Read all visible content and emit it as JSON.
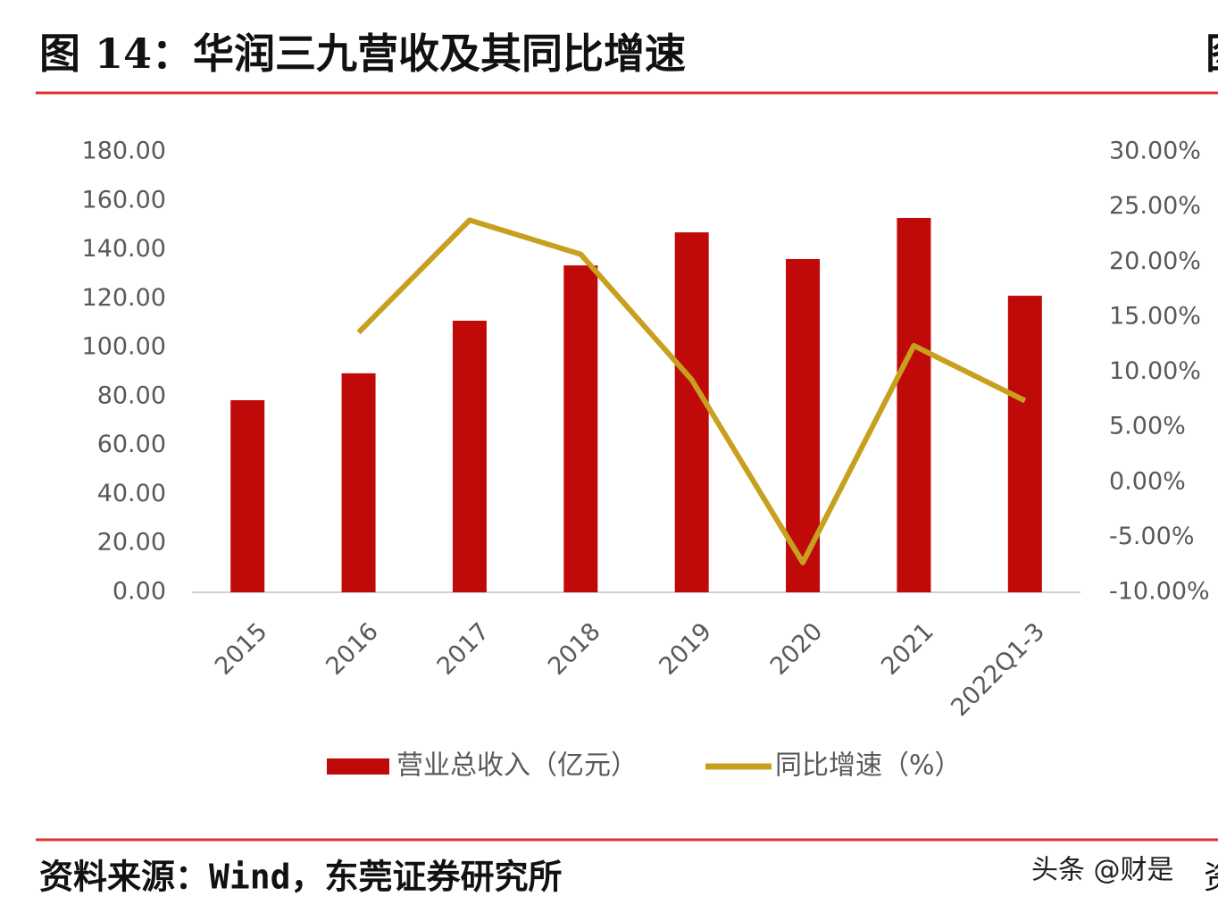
{
  "chart_data": {
    "type": "bar_line",
    "title": "图 14：华润三九营收及其同比增速",
    "source": "资料来源：Wind，东莞证券研究所",
    "categories": [
      "2015",
      "2016",
      "2017",
      "2018",
      "2019",
      "2020",
      "2021",
      "2022Q1-3"
    ],
    "series": [
      {
        "name": "营业总收入（亿元）",
        "type": "bar",
        "color": "#c00a0a",
        "values": [
          78.5,
          89.5,
          111.0,
          133.6,
          147.1,
          136.2,
          153.0,
          121.2
        ]
      },
      {
        "name": "同比增速（%）",
        "type": "line",
        "axis": "y2",
        "color": "#c8a020",
        "values": [
          null,
          13.6,
          23.8,
          20.7,
          9.3,
          -7.3,
          12.4,
          7.4
        ]
      }
    ],
    "ylim": [
      0,
      180
    ],
    "yticks": [
      {
        "value": 0,
        "label": "0.00"
      },
      {
        "value": 20,
        "label": "20.00"
      },
      {
        "value": 40,
        "label": "40.00"
      },
      {
        "value": 60,
        "label": "60.00"
      },
      {
        "value": 80,
        "label": "80.00"
      },
      {
        "value": 100,
        "label": "100.00"
      },
      {
        "value": 120,
        "label": "120.00"
      },
      {
        "value": 140,
        "label": "140.00"
      },
      {
        "value": 160,
        "label": "160.00"
      },
      {
        "value": 180,
        "label": "180.00"
      }
    ],
    "y2lim": [
      -10,
      30
    ],
    "y2ticks": [
      {
        "value": -10,
        "label": "-10.00%"
      },
      {
        "value": -5,
        "label": "-5.00%"
      },
      {
        "value": 0,
        "label": "0.00%"
      },
      {
        "value": 5,
        "label": "5.00%"
      },
      {
        "value": 10,
        "label": "10.00%"
      },
      {
        "value": 15,
        "label": "15.00%"
      },
      {
        "value": 20,
        "label": "20.00%"
      },
      {
        "value": 25,
        "label": "25.00%"
      },
      {
        "value": 30,
        "label": "30.00%"
      }
    ],
    "grid": false,
    "legend": "bottom"
  },
  "watermark": "头条 @财是",
  "cut_off_texts": [
    "图",
    "资"
  ]
}
